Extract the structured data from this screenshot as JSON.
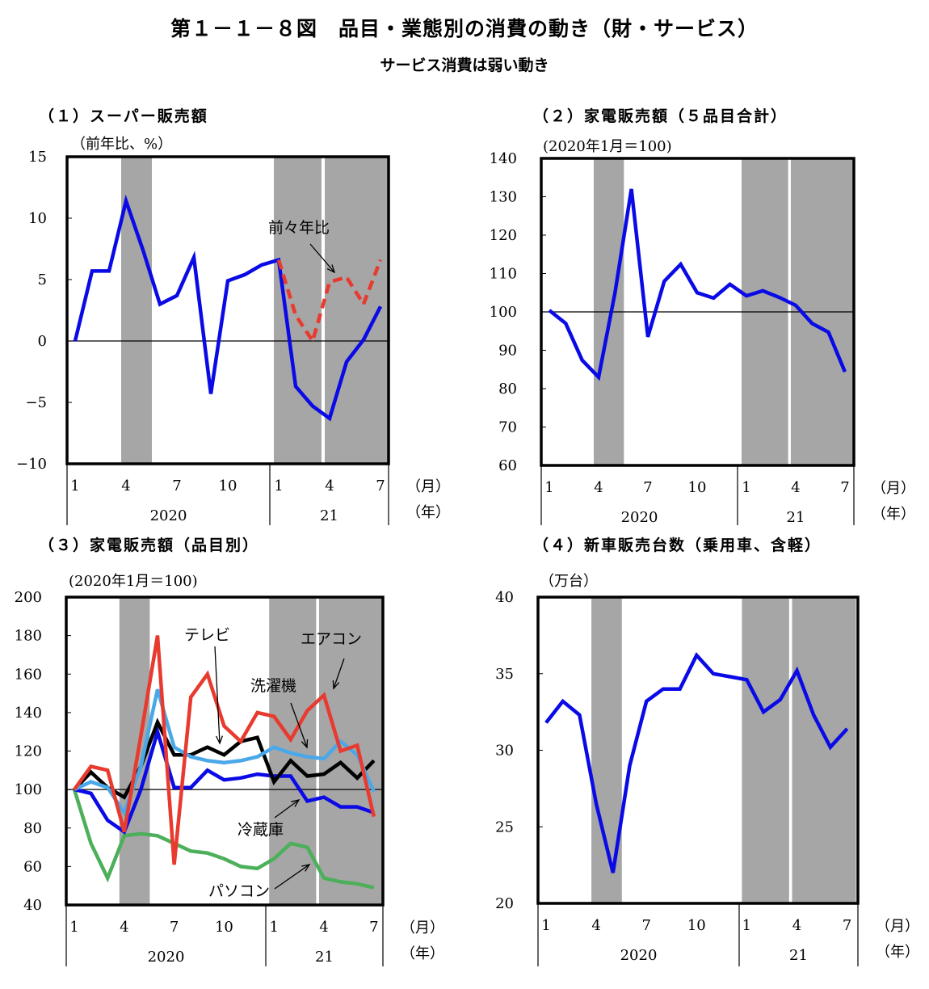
{
  "title": "第１－１－８図　品目・業態別の消費の動き（財・サービス）",
  "subtitle": "サービス消費は弱い動き",
  "chart_data": [
    {
      "type": "line",
      "title": "（１）スーパー販売額",
      "ylabel": "（前年比、%）",
      "x": [
        "2020-01",
        "2020-02",
        "2020-03",
        "2020-04",
        "2020-05",
        "2020-06",
        "2020-07",
        "2020-08",
        "2020-09",
        "2020-10",
        "2020-11",
        "2020-12",
        "2021-01",
        "2021-02",
        "2021-03",
        "2021-04",
        "2021-05",
        "2021-06",
        "2021-07"
      ],
      "xtick_labels": [
        "1",
        "4",
        "7",
        "10",
        "1",
        "4",
        "7"
      ],
      "year_labels": [
        "2020",
        "21"
      ],
      "x_unit": "（月）",
      "year_unit": "（年）",
      "ylim": [
        -10,
        15
      ],
      "yticks": [
        15,
        10,
        5,
        0,
        -5,
        -10
      ],
      "ytick_labels": [
        "15",
        "10",
        "5",
        "0",
        "−5",
        "−10"
      ],
      "reference_line": 0,
      "shaded_periods": [
        [
          "2020-04",
          "2020-05"
        ],
        [
          "2021-01",
          "2021-03"
        ],
        [
          "2021-04",
          "2021-07"
        ]
      ],
      "series": [
        {
          "color": "#0a0ae6",
          "style": "solid",
          "values": [
            0,
            5.7,
            5.7,
            11.4,
            7.4,
            3.0,
            3.7,
            6.8,
            -4.3,
            4.9,
            5.4,
            6.2,
            6.6,
            -3.7,
            -5.3,
            -6.3,
            -1.7,
            0.1,
            2.8
          ]
        },
        {
          "name": "前々年比",
          "color": "#e83a2e",
          "style": "dashed",
          "values": [
            null,
            null,
            null,
            null,
            null,
            null,
            null,
            null,
            null,
            null,
            null,
            null,
            6.6,
            2.1,
            0,
            4.8,
            5.2,
            3.0,
            6.6
          ]
        }
      ]
    },
    {
      "type": "line",
      "title": "（２）家電販売額（５品目合計）",
      "ylabel": "(2020年1月＝100)",
      "x": [
        "2020-01",
        "2020-02",
        "2020-03",
        "2020-04",
        "2020-05",
        "2020-06",
        "2020-07",
        "2020-08",
        "2020-09",
        "2020-10",
        "2020-11",
        "2020-12",
        "2021-01",
        "2021-02",
        "2021-03",
        "2021-04",
        "2021-05",
        "2021-06",
        "2021-07"
      ],
      "xtick_labels": [
        "1",
        "4",
        "7",
        "10",
        "1",
        "4",
        "7"
      ],
      "year_labels": [
        "2020",
        "21"
      ],
      "x_unit": "（月）",
      "year_unit": "（年）",
      "ylim": [
        60,
        140
      ],
      "yticks": [
        140,
        130,
        120,
        110,
        100,
        90,
        80,
        70,
        60
      ],
      "ytick_labels": [
        "140",
        "130",
        "120",
        "110",
        "100",
        "90",
        "80",
        "70",
        "60"
      ],
      "reference_line": 100,
      "shaded_periods": [
        [
          "2020-04",
          "2020-05"
        ],
        [
          "2021-01",
          "2021-03"
        ],
        [
          "2021-04",
          "2021-07"
        ]
      ],
      "series": [
        {
          "color": "#0a0ae6",
          "style": "solid",
          "values": [
            100.4,
            97,
            87.4,
            83,
            105,
            132,
            93.5,
            108,
            112.4,
            105,
            103.6,
            107.2,
            104.2,
            105.5,
            103.8,
            101.7,
            97,
            94.7,
            84.4
          ]
        }
      ]
    },
    {
      "type": "line",
      "title": "（３）家電販売額（品目別）",
      "ylabel": "(2020年1月＝100)",
      "x": [
        "2020-01",
        "2020-02",
        "2020-03",
        "2020-04",
        "2020-05",
        "2020-06",
        "2020-07",
        "2020-08",
        "2020-09",
        "2020-10",
        "2020-11",
        "2020-12",
        "2021-01",
        "2021-02",
        "2021-03",
        "2021-04",
        "2021-05",
        "2021-06",
        "2021-07"
      ],
      "xtick_labels": [
        "1",
        "4",
        "7",
        "10",
        "1",
        "4",
        "7"
      ],
      "year_labels": [
        "2020",
        "21"
      ],
      "x_unit": "（月）",
      "year_unit": "（年）",
      "ylim": [
        40,
        200
      ],
      "yticks": [
        200,
        180,
        160,
        140,
        120,
        100,
        80,
        60,
        40
      ],
      "ytick_labels": [
        "200",
        "180",
        "160",
        "140",
        "120",
        "100",
        "80",
        "60",
        "40"
      ],
      "reference_line": 100,
      "shaded_periods": [
        [
          "2020-04",
          "2020-05"
        ],
        [
          "2021-01",
          "2021-03"
        ],
        [
          "2021-04",
          "2021-07"
        ]
      ],
      "series": [
        {
          "name": "パソコン",
          "color": "#4caf5a",
          "style": "solid",
          "values": [
            100,
            72,
            54,
            76,
            77,
            76,
            72,
            68,
            67,
            64,
            60,
            59,
            64,
            72,
            70,
            54,
            52,
            51,
            49
          ]
        },
        {
          "name": "冷蔵庫",
          "color": "#0a0ae6",
          "style": "solid",
          "values": [
            100,
            98,
            84,
            78,
            100,
            130,
            101,
            101,
            110,
            105,
            106,
            108,
            107,
            107,
            94,
            96,
            91,
            91,
            88
          ]
        },
        {
          "name": "テレビ",
          "color": "#000000",
          "style": "solid",
          "values": [
            100,
            109,
            101,
            96,
            112,
            135,
            118,
            118,
            122,
            118,
            125,
            127,
            104,
            115,
            107,
            108,
            114,
            106,
            115
          ]
        },
        {
          "name": "洗濯機",
          "color": "#4aa8e8",
          "style": "solid",
          "values": [
            100,
            104,
            101,
            88,
            112,
            152,
            122,
            117,
            115,
            114,
            115,
            117,
            122,
            119,
            117,
            116,
            125,
            118,
            99
          ]
        },
        {
          "name": "エアコン",
          "color": "#e83a2e",
          "style": "solid",
          "values": [
            100,
            112,
            110,
            78,
            128,
            180,
            61,
            148,
            160,
            133,
            125,
            140,
            138,
            126,
            141,
            149,
            120,
            123,
            86
          ]
        }
      ]
    },
    {
      "type": "line",
      "title": "（４）新車販売台数（乗用車、含軽）",
      "ylabel": "（万台）",
      "x": [
        "2020-01",
        "2020-02",
        "2020-03",
        "2020-04",
        "2020-05",
        "2020-06",
        "2020-07",
        "2020-08",
        "2020-09",
        "2020-10",
        "2020-11",
        "2020-12",
        "2021-01",
        "2021-02",
        "2021-03",
        "2021-04",
        "2021-05",
        "2021-06",
        "2021-07"
      ],
      "xtick_labels": [
        "1",
        "4",
        "7",
        "10",
        "1",
        "4",
        "7"
      ],
      "year_labels": [
        "2020",
        "21"
      ],
      "x_unit": "（月）",
      "year_unit": "（年）",
      "ylim": [
        20,
        40
      ],
      "yticks": [
        40,
        35,
        30,
        25,
        20
      ],
      "ytick_labels": [
        "40",
        "35",
        "30",
        "25",
        "20"
      ],
      "shaded_periods": [
        [
          "2020-04",
          "2020-05"
        ],
        [
          "2021-01",
          "2021-03"
        ],
        [
          "2021-04",
          "2021-07"
        ]
      ],
      "series": [
        {
          "color": "#0a0ae6",
          "style": "solid",
          "values": [
            31.8,
            33.2,
            32.3,
            26.5,
            22,
            29,
            33.2,
            34,
            34,
            36.2,
            35,
            34.8,
            34.6,
            32.5,
            33.3,
            35.2,
            32.3,
            30.2,
            31.4
          ]
        }
      ]
    }
  ]
}
